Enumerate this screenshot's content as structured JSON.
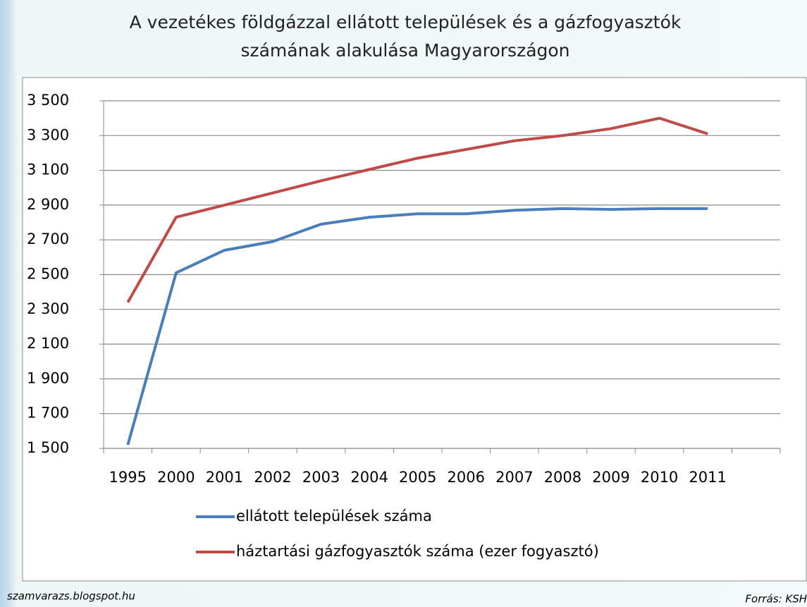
{
  "chart_data": {
    "type": "line",
    "title": "A vezetékes földgázzal ellátott települések és a gázfogyasztók számának alakulása Magyarországon",
    "categories": [
      "1995",
      "2000",
      "2001",
      "2002",
      "2003",
      "2004",
      "2005",
      "2006",
      "2007",
      "2008",
      "2009",
      "2010",
      "2011",
      null
    ],
    "series": [
      {
        "name": "ellátott települések száma",
        "color": "#4a7ebb",
        "values": [
          1520,
          2510,
          2640,
          2690,
          2790,
          2830,
          2850,
          2850,
          2870,
          2880,
          2875,
          2880,
          2880,
          null
        ]
      },
      {
        "name": "háztartási gázfogyasztók száma (ezer fogyasztó)",
        "color": "#be4b48",
        "values": [
          2340,
          2830,
          2900,
          2970,
          3040,
          3105,
          3170,
          3220,
          3270,
          3300,
          3340,
          3400,
          3310,
          null
        ]
      }
    ],
    "ylim": [
      1500,
      3500
    ],
    "yticks": [
      {
        "value": 1500,
        "label": "1 500"
      },
      {
        "value": 1700,
        "label": "1 700"
      },
      {
        "value": 1900,
        "label": "1 900"
      },
      {
        "value": 2100,
        "label": "2 100"
      },
      {
        "value": 2300,
        "label": "2 300"
      },
      {
        "value": 2500,
        "label": "2 500"
      },
      {
        "value": 2700,
        "label": "2 700"
      },
      {
        "value": 2900,
        "label": "2 900"
      },
      {
        "value": 3100,
        "label": "3 100"
      },
      {
        "value": 3300,
        "label": "3 300"
      },
      {
        "value": 3500,
        "label": "3 500"
      }
    ],
    "grid": true,
    "legend": "bottom",
    "footer_left": "szamvarazs.blogspot.hu",
    "footer_right": "Forrás: KSH"
  }
}
